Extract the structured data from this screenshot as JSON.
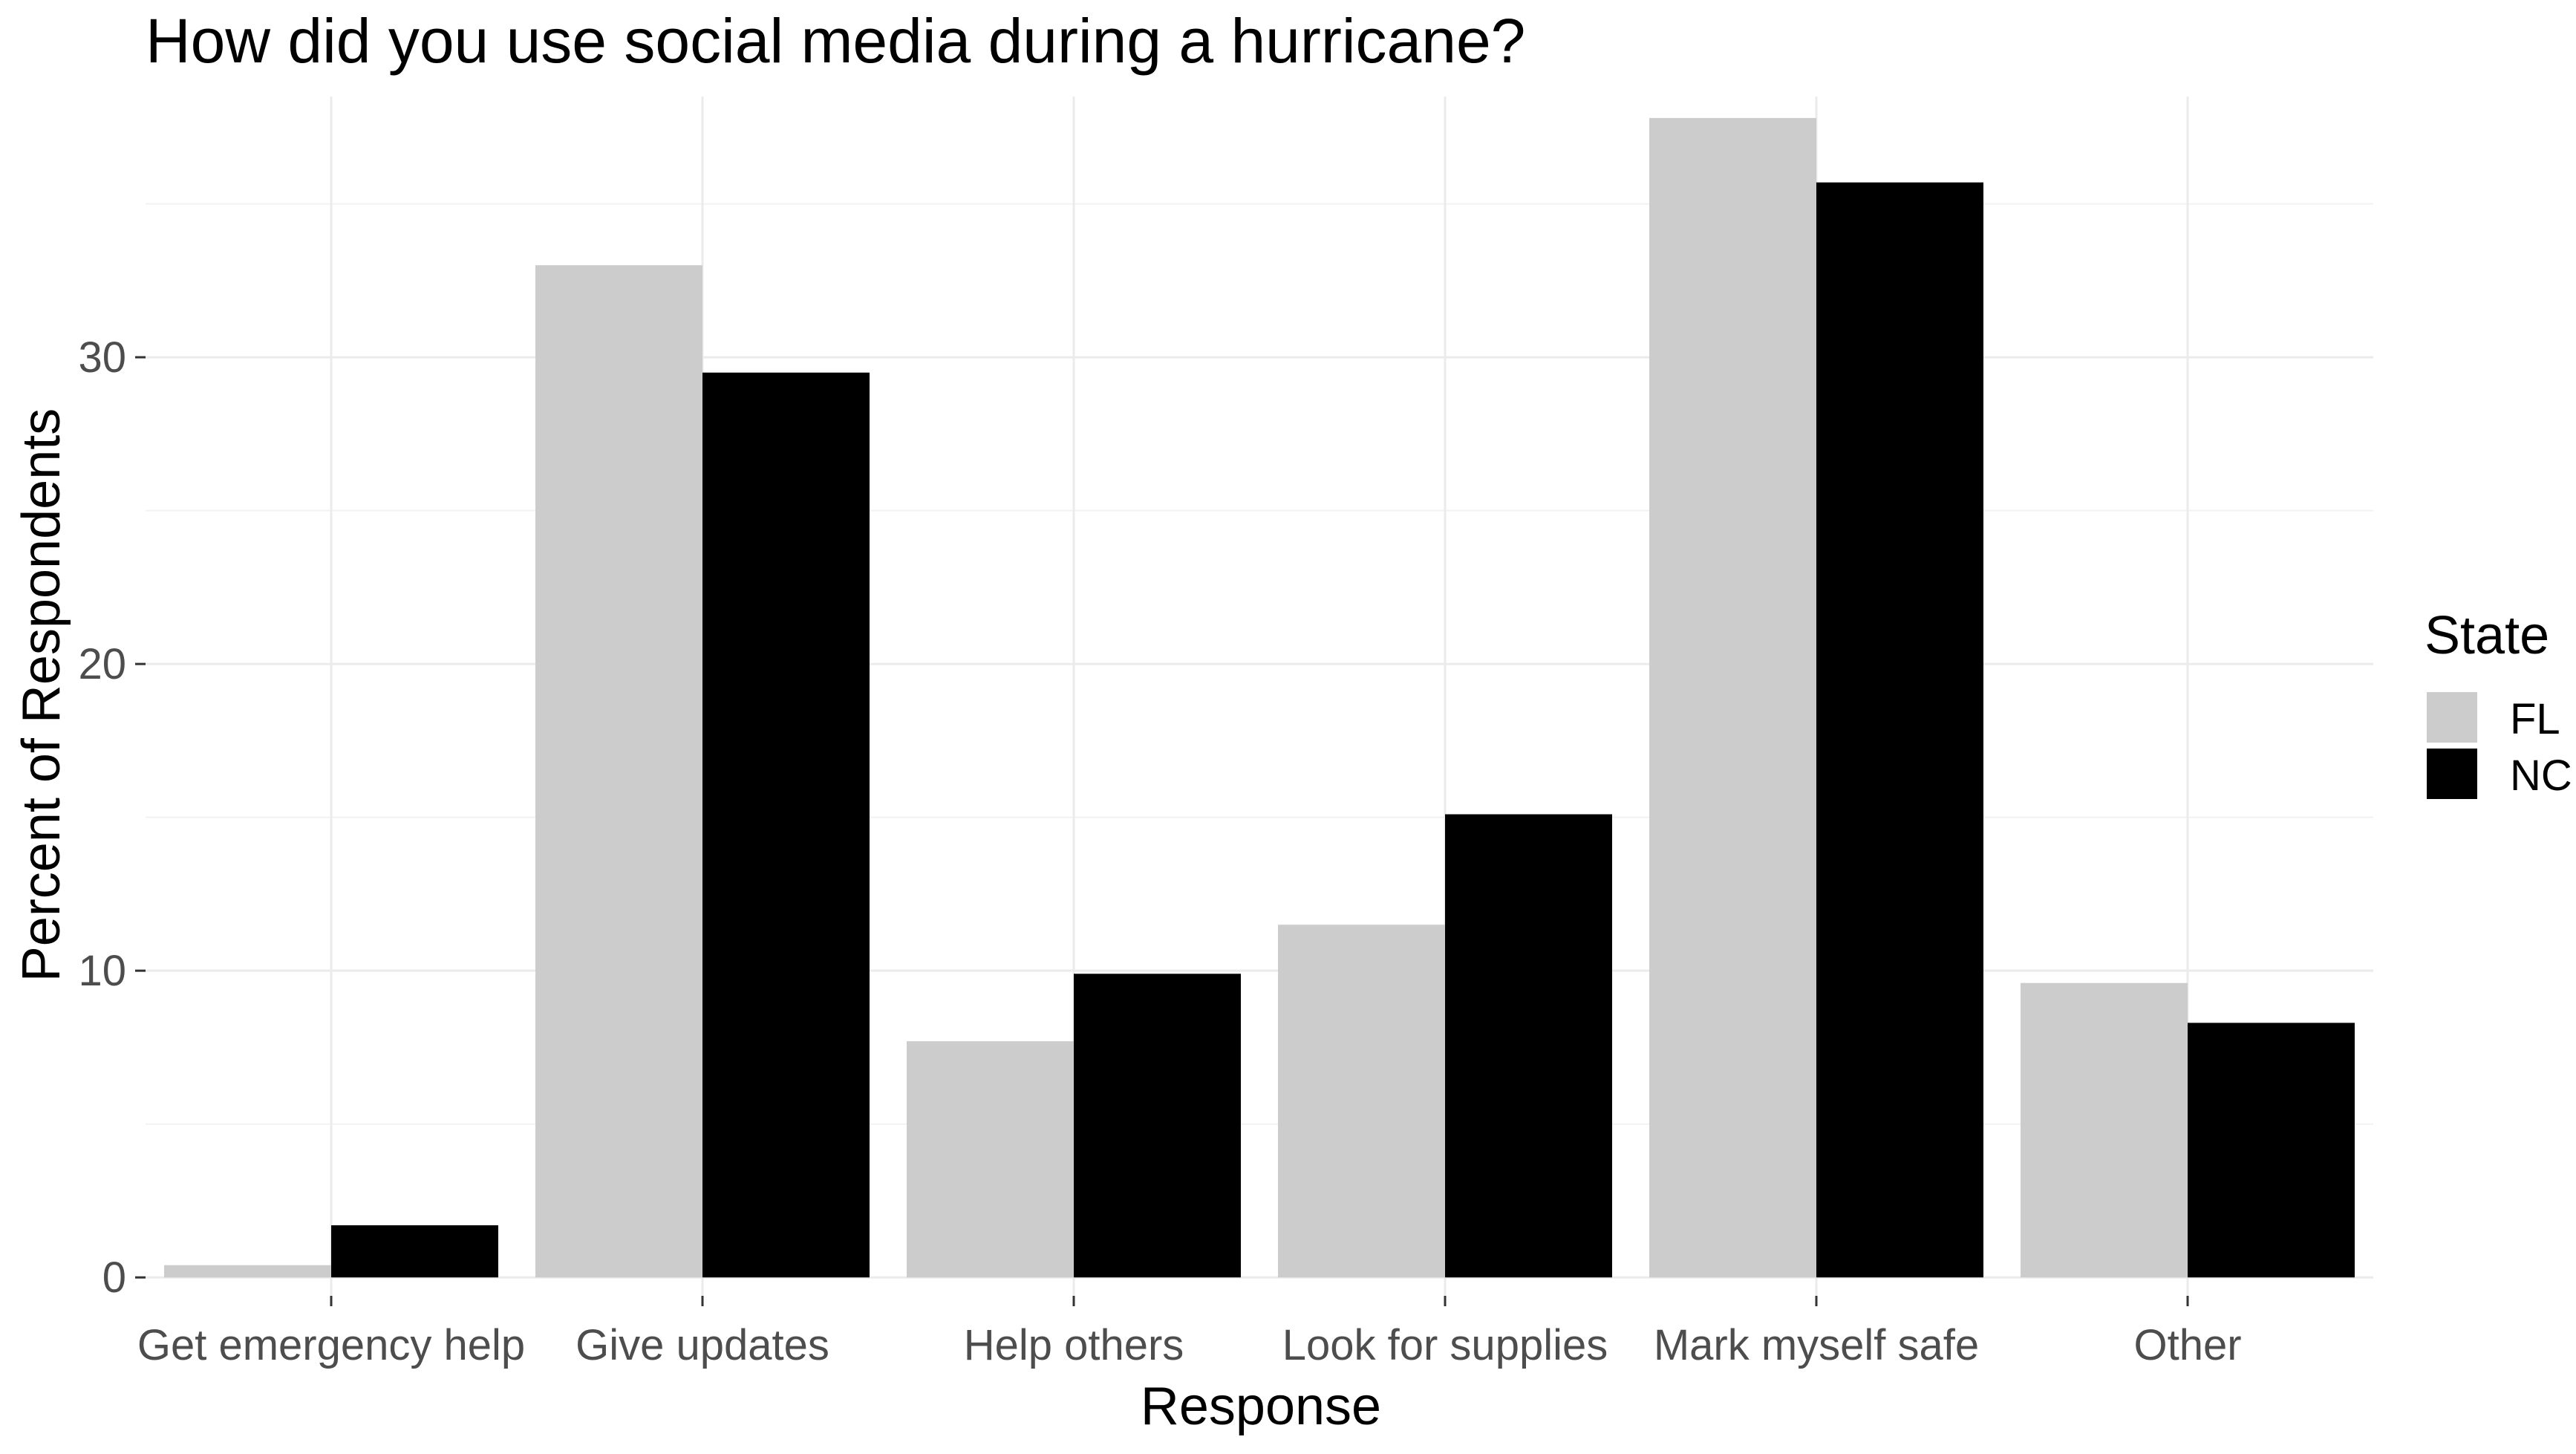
{
  "chart_data": {
    "type": "bar",
    "title": "How did you use social media during a hurricane?",
    "xlabel": "Response",
    "ylabel": "Percent of Respondents",
    "categories": [
      "Get emergency help",
      "Give updates",
      "Help others",
      "Look for supplies",
      "Mark myself safe",
      "Other"
    ],
    "series": [
      {
        "name": "FL",
        "color": "#cccccc",
        "values": [
          0.4,
          33.0,
          7.7,
          11.5,
          37.8,
          9.6
        ]
      },
      {
        "name": "NC",
        "color": "#000000",
        "values": [
          1.7,
          29.5,
          9.9,
          15.1,
          35.7,
          8.3
        ]
      }
    ],
    "ylim": [
      -0.6,
      38.5
    ],
    "yticks": [
      0,
      10,
      20,
      30
    ],
    "ytick_labels": [
      "0",
      "10",
      "20",
      "30"
    ],
    "grid": true,
    "legend": {
      "title": "State",
      "position": "right"
    }
  }
}
